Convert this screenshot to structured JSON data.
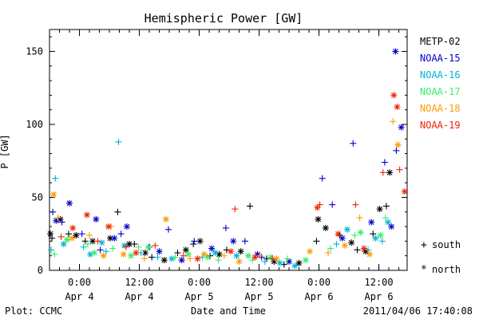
{
  "chart_data": {
    "type": "scatter",
    "title": "Hemispheric Power [GW]",
    "xlabel": "Date and Time",
    "ylabel": "P [GW]",
    "ylim": [
      0,
      165
    ],
    "xlim": [
      "2011-04-03T18:00",
      "2011-04-06T17:40"
    ],
    "yticks": [
      0,
      50,
      100,
      150
    ],
    "xticks": [
      {
        "x": "2011-04-04T00:00",
        "line1": "0:00",
        "line2": "Apr 4"
      },
      {
        "x": "2011-04-04T12:00",
        "line1": "12:00",
        "line2": "Apr 4"
      },
      {
        "x": "2011-04-05T00:00",
        "line1": "0:00",
        "line2": "Apr 5"
      },
      {
        "x": "2011-04-05T12:00",
        "line1": "12:00",
        "line2": "Apr 5"
      },
      {
        "x": "2011-04-06T00:00",
        "line1": "0:00",
        "line2": "Apr 6"
      },
      {
        "x": "2011-04-06T12:00",
        "line1": "12:00",
        "line2": "Apr 6"
      }
    ],
    "grid": false,
    "legend_position": "right",
    "symbol_legend": [
      {
        "symbol": "+",
        "label": "south"
      },
      {
        "symbol": "*",
        "label": "north"
      }
    ],
    "series": [
      {
        "name": "METP-02",
        "color": "#000000",
        "south": [
          [
            "2011-04-03T18:30",
            22
          ],
          [
            "2011-04-03T21:50",
            25
          ],
          [
            "2011-04-04T01:10",
            20
          ],
          [
            "2011-04-04T07:40",
            40
          ],
          [
            "2011-04-04T11:00",
            18
          ],
          [
            "2011-04-04T14:30",
            9
          ],
          [
            "2011-04-04T19:40",
            12
          ],
          [
            "2011-04-04T22:50",
            18
          ],
          [
            "2011-04-05T02:10",
            10
          ],
          [
            "2011-04-05T05:30",
            14
          ],
          [
            "2011-04-05T10:10",
            44
          ],
          [
            "2011-04-05T13:30",
            8
          ],
          [
            "2011-04-05T17:00",
            4
          ],
          [
            "2011-04-05T23:30",
            20
          ],
          [
            "2011-04-06T04:10",
            24
          ],
          [
            "2011-04-06T07:40",
            14
          ],
          [
            "2011-04-06T10:50",
            25
          ],
          [
            "2011-04-06T13:30",
            44
          ]
        ],
        "north": [
          [
            "2011-04-03T18:10",
            25
          ],
          [
            "2011-04-03T20:10",
            35
          ],
          [
            "2011-04-03T23:20",
            24
          ],
          [
            "2011-04-04T02:40",
            20
          ],
          [
            "2011-04-04T06:10",
            22
          ],
          [
            "2011-04-04T10:00",
            18
          ],
          [
            "2011-04-04T13:10",
            12
          ],
          [
            "2011-04-04T17:00",
            7
          ],
          [
            "2011-04-04T21:20",
            14
          ],
          [
            "2011-04-05T00:10",
            20
          ],
          [
            "2011-04-05T04:00",
            11
          ],
          [
            "2011-04-05T08:20",
            13
          ],
          [
            "2011-04-05T15:00",
            6
          ],
          [
            "2011-04-05T20:00",
            5
          ],
          [
            "2011-04-05T23:50",
            35
          ],
          [
            "2011-04-06T01:20",
            29
          ],
          [
            "2011-04-06T06:30",
            19
          ],
          [
            "2011-04-06T09:20",
            13
          ],
          [
            "2011-04-06T12:10",
            42
          ],
          [
            "2011-04-06T14:10",
            67
          ]
        ]
      },
      {
        "name": "NOAA-15",
        "color": "#0000cc",
        "south": [
          [
            "2011-04-03T18:40",
            40
          ],
          [
            "2011-04-03T20:30",
            33
          ],
          [
            "2011-04-04T00:30",
            25
          ],
          [
            "2011-04-04T04:10",
            14
          ],
          [
            "2011-04-04T08:20",
            25
          ],
          [
            "2011-04-04T14:00",
            16
          ],
          [
            "2011-04-04T17:50",
            28
          ],
          [
            "2011-04-04T23:00",
            20
          ],
          [
            "2011-04-05T05:20",
            29
          ],
          [
            "2011-04-05T09:10",
            20
          ],
          [
            "2011-04-05T12:30",
            9
          ],
          [
            "2011-04-06T00:40",
            63
          ],
          [
            "2011-04-06T02:40",
            45
          ],
          [
            "2011-04-06T06:50",
            87
          ],
          [
            "2011-04-06T13:10",
            74
          ],
          [
            "2011-04-06T15:30",
            82
          ]
        ],
        "north": [
          [
            "2011-04-03T19:20",
            34
          ],
          [
            "2011-04-03T22:00",
            46
          ],
          [
            "2011-04-04T03:20",
            35
          ],
          [
            "2011-04-04T07:00",
            22
          ],
          [
            "2011-04-04T09:30",
            30
          ],
          [
            "2011-04-04T16:00",
            13
          ],
          [
            "2011-04-04T20:30",
            7
          ],
          [
            "2011-04-05T02:30",
            15
          ],
          [
            "2011-04-05T06:50",
            20
          ],
          [
            "2011-04-05T11:40",
            11
          ],
          [
            "2011-04-05T18:00",
            6
          ],
          [
            "2011-04-06T04:40",
            22
          ],
          [
            "2011-04-06T10:30",
            33
          ],
          [
            "2011-04-06T14:30",
            30
          ],
          [
            "2011-04-06T15:20",
            150
          ],
          [
            "2011-04-06T16:30",
            98
          ]
        ]
      },
      {
        "name": "NOAA-16",
        "color": "#00b4d8",
        "south": [
          [
            "2011-04-03T18:20",
            14
          ],
          [
            "2011-04-03T19:10",
            63
          ],
          [
            "2011-04-04T00:50",
            16
          ],
          [
            "2011-04-04T05:20",
            13
          ],
          [
            "2011-04-04T07:50",
            88
          ],
          [
            "2011-04-04T12:20",
            12
          ],
          [
            "2011-04-04T15:40",
            9
          ],
          [
            "2011-04-05T00:40",
            9
          ],
          [
            "2011-04-05T13:10",
            6
          ],
          [
            "2011-04-06T03:30",
            18
          ],
          [
            "2011-04-06T09:50",
            14
          ],
          [
            "2011-04-06T12:40",
            20
          ]
        ],
        "north": [
          [
            "2011-04-03T20:50",
            18
          ],
          [
            "2011-04-04T02:10",
            11
          ],
          [
            "2011-04-04T04:30",
            19
          ],
          [
            "2011-04-04T09:00",
            17
          ],
          [
            "2011-04-04T18:30",
            8
          ],
          [
            "2011-04-05T03:10",
            12
          ],
          [
            "2011-04-05T07:30",
            10
          ],
          [
            "2011-04-05T16:10",
            5
          ],
          [
            "2011-04-05T19:10",
            3
          ],
          [
            "2011-04-06T05:40",
            28
          ],
          [
            "2011-04-06T11:20",
            22
          ],
          [
            "2011-04-06T13:50",
            33
          ]
        ]
      },
      {
        "name": "NOAA-17",
        "color": "#33ee66",
        "south": [
          [
            "2011-04-03T19:00",
            11
          ],
          [
            "2011-04-04T01:40",
            18
          ],
          [
            "2011-04-04T06:40",
            15
          ],
          [
            "2011-04-04T11:50",
            16
          ],
          [
            "2011-04-04T19:10",
            9
          ],
          [
            "2011-04-05T03:50",
            7
          ],
          [
            "2011-04-05T10:40",
            7
          ],
          [
            "2011-04-05T17:40",
            8
          ],
          [
            "2011-04-06T02:20",
            15
          ],
          [
            "2011-04-06T07:10",
            24
          ],
          [
            "2011-04-06T13:20",
            36
          ]
        ],
        "north": [
          [
            "2011-04-03T21:30",
            21
          ],
          [
            "2011-04-04T03:00",
            12
          ],
          [
            "2011-04-04T10:20",
            10
          ],
          [
            "2011-04-04T13:50",
            16
          ],
          [
            "2011-04-04T21:50",
            11
          ],
          [
            "2011-04-05T01:40",
            9
          ],
          [
            "2011-04-05T09:50",
            10
          ],
          [
            "2011-04-05T14:20",
            9
          ],
          [
            "2011-04-05T21:20",
            7
          ],
          [
            "2011-04-06T08:20",
            26
          ],
          [
            "2011-04-06T12:20",
            24
          ]
        ]
      },
      {
        "name": "NOAA-18",
        "color": "#ff9900",
        "south": [
          [
            "2011-04-03T19:40",
            36
          ],
          [
            "2011-04-04T02:00",
            24
          ],
          [
            "2011-04-04T06:20",
            30
          ],
          [
            "2011-04-04T13:00",
            8
          ],
          [
            "2011-04-04T22:10",
            8
          ],
          [
            "2011-04-05T05:00",
            10
          ],
          [
            "2011-04-05T12:10",
            10
          ],
          [
            "2011-04-06T01:50",
            12
          ],
          [
            "2011-04-06T08:10",
            36
          ],
          [
            "2011-04-06T14:50",
            102
          ]
        ],
        "north": [
          [
            "2011-04-03T18:50",
            52
          ],
          [
            "2011-04-03T22:30",
            22
          ],
          [
            "2011-04-04T04:50",
            10
          ],
          [
            "2011-04-04T08:50",
            11
          ],
          [
            "2011-04-04T17:20",
            35
          ],
          [
            "2011-04-05T01:00",
            11
          ],
          [
            "2011-04-05T08:00",
            6
          ],
          [
            "2011-04-05T15:30",
            8
          ],
          [
            "2011-04-05T22:10",
            13
          ],
          [
            "2011-04-06T05:10",
            17
          ],
          [
            "2011-04-06T10:10",
            11
          ],
          [
            "2011-04-06T15:50",
            86
          ]
        ]
      },
      {
        "name": "NOAA-19",
        "color": "#ee2200",
        "south": [
          [
            "2011-04-03T20:20",
            23
          ],
          [
            "2011-04-04T03:40",
            20
          ],
          [
            "2011-04-04T09:20",
            16
          ],
          [
            "2011-04-04T15:10",
            17
          ],
          [
            "2011-04-04T20:50",
            10
          ],
          [
            "2011-04-05T07:10",
            42
          ],
          [
            "2011-04-05T14:40",
            8
          ],
          [
            "2011-04-06T00:10",
            45
          ],
          [
            "2011-04-06T07:20",
            45
          ],
          [
            "2011-04-06T12:50",
            67
          ],
          [
            "2011-04-06T16:10",
            69
          ]
        ],
        "north": [
          [
            "2011-04-03T22:40",
            29
          ],
          [
            "2011-04-04T01:30",
            38
          ],
          [
            "2011-04-04T05:50",
            30
          ],
          [
            "2011-04-04T11:20",
            12
          ],
          [
            "2011-04-04T23:40",
            8
          ],
          [
            "2011-04-05T06:20",
            13
          ],
          [
            "2011-04-05T11:10",
            9
          ],
          [
            "2011-04-05T23:40",
            43
          ],
          [
            "2011-04-06T03:50",
            25
          ],
          [
            "2011-04-06T09:00",
            15
          ],
          [
            "2011-04-06T15:00",
            120
          ],
          [
            "2011-04-06T15:40",
            112
          ],
          [
            "2011-04-06T17:10",
            54
          ]
        ]
      }
    ]
  },
  "footer": {
    "left": "Plot: CCMC",
    "right": "2011/04/06 17:40:08"
  }
}
